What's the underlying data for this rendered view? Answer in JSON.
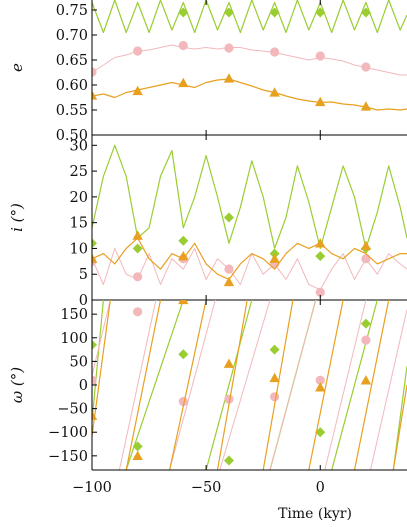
{
  "colors": {
    "green": "#9acd32",
    "pink": "#f2b8bc",
    "orange": "#e8a020"
  },
  "x_axis": {
    "label": "Time (kyr)",
    "range": [
      -100,
      38
    ],
    "ticks": [
      -100,
      -50,
      0
    ],
    "tick_labels": [
      "−100",
      "−50",
      "0"
    ]
  },
  "chart_data": [
    {
      "type": "line",
      "panel": "e",
      "ylabel": "e",
      "ylim": [
        0.5,
        0.77
      ],
      "yticks": [
        0.5,
        0.55,
        0.6,
        0.65,
        0.7,
        0.75
      ],
      "ytick_labels": [
        "0.50",
        "0.55",
        "0.60",
        "0.65",
        "0.70",
        "0.75"
      ],
      "series": [
        {
          "color": "green",
          "marker": "diamond",
          "x": [
            -100,
            -95,
            -90,
            -85,
            -80,
            -75,
            -70,
            -65,
            -60,
            -55,
            -50,
            -45,
            -40,
            -35,
            -30,
            -25,
            -20,
            -15,
            -10,
            -5,
            0,
            5,
            10,
            15,
            20,
            25,
            30,
            35,
            38
          ],
          "y": [
            0.765,
            0.705,
            0.77,
            0.705,
            0.765,
            0.705,
            0.77,
            0.71,
            0.765,
            0.705,
            0.77,
            0.71,
            0.765,
            0.705,
            0.77,
            0.71,
            0.765,
            0.705,
            0.77,
            0.71,
            0.765,
            0.705,
            0.77,
            0.71,
            0.765,
            0.705,
            0.77,
            0.71,
            0.74
          ],
          "markers_x": [
            -60,
            -40,
            -20,
            0,
            20
          ],
          "markers_y": [
            0.745,
            0.745,
            0.745,
            0.745,
            0.745
          ]
        },
        {
          "color": "pink",
          "marker": "circle",
          "x": [
            -100,
            -95,
            -90,
            -85,
            -80,
            -75,
            -70,
            -65,
            -60,
            -55,
            -50,
            -45,
            -40,
            -35,
            -30,
            -25,
            -20,
            -15,
            -10,
            -5,
            0,
            5,
            10,
            15,
            20,
            25,
            30,
            35,
            38
          ],
          "y": [
            0.625,
            0.64,
            0.655,
            0.66,
            0.668,
            0.67,
            0.675,
            0.68,
            0.675,
            0.672,
            0.675,
            0.672,
            0.675,
            0.675,
            0.67,
            0.668,
            0.665,
            0.66,
            0.655,
            0.65,
            0.655,
            0.652,
            0.648,
            0.64,
            0.635,
            0.63,
            0.625,
            0.62,
            0.62
          ],
          "markers_x": [
            -100,
            -80,
            -60,
            -40,
            -20,
            0,
            20
          ],
          "markers_y": [
            0.626,
            0.668,
            0.679,
            0.674,
            0.666,
            0.658,
            0.636
          ]
        },
        {
          "color": "orange",
          "marker": "triangle",
          "x": [
            -100,
            -95,
            -90,
            -85,
            -80,
            -75,
            -70,
            -65,
            -60,
            -55,
            -50,
            -45,
            -40,
            -35,
            -30,
            -25,
            -20,
            -15,
            -10,
            -5,
            0,
            5,
            10,
            15,
            20,
            25,
            30,
            35,
            38
          ],
          "y": [
            0.578,
            0.582,
            0.575,
            0.585,
            0.59,
            0.595,
            0.6,
            0.605,
            0.6,
            0.595,
            0.605,
            0.61,
            0.612,
            0.605,
            0.598,
            0.59,
            0.585,
            0.578,
            0.572,
            0.568,
            0.565,
            0.566,
            0.562,
            0.56,
            0.556,
            0.55,
            0.552,
            0.55,
            0.552
          ],
          "markers_x": [
            -100,
            -80,
            -60,
            -40,
            -20,
            0,
            20
          ],
          "markers_y": [
            0.579,
            0.588,
            0.604,
            0.613,
            0.585,
            0.566,
            0.557
          ]
        }
      ]
    },
    {
      "type": "line",
      "panel": "i",
      "ylabel": "i (°)",
      "ylim": [
        0,
        32
      ],
      "yticks": [
        0,
        5,
        10,
        15,
        20,
        25,
        30
      ],
      "ytick_labels": [
        "0",
        "5",
        "10",
        "15",
        "20",
        "25",
        "30"
      ],
      "series": [
        {
          "color": "green",
          "marker": "diamond",
          "x": [
            -100,
            -95,
            -90,
            -85,
            -80,
            -75,
            -70,
            -65,
            -60,
            -55,
            -50,
            -45,
            -40,
            -35,
            -30,
            -25,
            -20,
            -15,
            -10,
            -5,
            0,
            5,
            10,
            15,
            20,
            25,
            30,
            35,
            38
          ],
          "y": [
            14,
            24,
            30,
            24,
            12,
            14,
            24,
            29,
            14,
            20,
            28,
            20,
            11,
            18,
            27,
            20,
            10,
            16,
            26,
            19,
            10,
            18,
            26,
            20,
            10,
            17,
            26,
            18,
            12
          ],
          "markers_x": [
            -100,
            -80,
            -60,
            -40,
            -20,
            0,
            20
          ],
          "markers_y": [
            11,
            10,
            11.5,
            16,
            9,
            8.5,
            10
          ]
        },
        {
          "color": "pink",
          "marker": "circle",
          "x": [
            -100,
            -95,
            -90,
            -85,
            -80,
            -75,
            -70,
            -65,
            -60,
            -55,
            -50,
            -45,
            -40,
            -35,
            -30,
            -25,
            -20,
            -15,
            -10,
            -5,
            0,
            5,
            10,
            15,
            20,
            25,
            30,
            35,
            38
          ],
          "y": [
            8,
            3,
            10,
            5,
            4,
            9,
            3,
            8,
            6,
            10,
            4,
            8,
            6,
            3,
            9,
            5,
            7,
            4,
            8,
            3,
            2,
            6,
            9,
            4,
            8,
            5,
            9,
            7,
            6
          ],
          "markers_x": [
            -100,
            -80,
            -60,
            -40,
            -20,
            0,
            20
          ],
          "markers_y": [
            7.5,
            4.5,
            8,
            6,
            7,
            1.5,
            8
          ]
        },
        {
          "color": "orange",
          "marker": "triangle",
          "x": [
            -100,
            -95,
            -90,
            -85,
            -80,
            -75,
            -70,
            -65,
            -60,
            -55,
            -50,
            -45,
            -40,
            -35,
            -30,
            -25,
            -20,
            -15,
            -10,
            -5,
            0,
            5,
            10,
            15,
            20,
            25,
            30,
            35,
            38
          ],
          "y": [
            8,
            9,
            7,
            10,
            12,
            8,
            6,
            9,
            8,
            11,
            7,
            5,
            4,
            7,
            9,
            8,
            6,
            9,
            11,
            10,
            11,
            9,
            8,
            10,
            9,
            7,
            8,
            9,
            9
          ],
          "markers_x": [
            -100,
            -80,
            -60,
            -40,
            -20,
            0,
            20
          ],
          "markers_y": [
            8,
            12.5,
            8.5,
            3.5,
            8,
            11,
            10.5
          ]
        }
      ]
    },
    {
      "type": "line",
      "panel": "omega",
      "ylabel": "ω (°)",
      "ylim": [
        -180,
        180
      ],
      "yticks": [
        -150,
        -100,
        -50,
        0,
        50,
        100,
        150
      ],
      "ytick_labels": [
        "−150",
        "−100",
        "−50",
        "0",
        "50",
        "100",
        "150"
      ],
      "series": [
        {
          "color": "green",
          "marker": "diamond",
          "segments": [
            {
              "x": [
                -102,
                -95
              ],
              "y": [
                -180,
                180
              ]
            },
            {
              "x": [
                -85,
                -60
              ],
              "y": [
                -180,
                180
              ]
            },
            {
              "x": [
                -50,
                -30
              ],
              "y": [
                -180,
                180
              ]
            },
            {
              "x": [
                -22,
                -2
              ],
              "y": [
                -180,
                180
              ]
            },
            {
              "x": [
                5,
                25
              ],
              "y": [
                -180,
                180
              ]
            },
            {
              "x": [
                32,
                38
              ],
              "y": [
                -180,
                40
              ]
            }
          ],
          "markers_x": [
            -100,
            -80,
            -60,
            -40,
            -20,
            0,
            20
          ],
          "markers_y": [
            85,
            -130,
            65,
            -160,
            75,
            -100,
            130
          ]
        },
        {
          "color": "pink",
          "marker": "circle",
          "segments": [
            {
              "x": [
                -110,
                -92
              ],
              "y": [
                -180,
                180
              ]
            },
            {
              "x": [
                -88,
                -72
              ],
              "y": [
                -180,
                180
              ]
            },
            {
              "x": [
                -66,
                -46
              ],
              "y": [
                -180,
                180
              ]
            },
            {
              "x": [
                -44,
                -22
              ],
              "y": [
                -180,
                180
              ]
            },
            {
              "x": [
                -22,
                -2
              ],
              "y": [
                -180,
                180
              ]
            },
            {
              "x": [
                2,
                20
              ],
              "y": [
                -180,
                180
              ]
            },
            {
              "x": [
                22,
                38
              ],
              "y": [
                -180,
                160
              ]
            }
          ],
          "markers_x": [
            -100,
            -80,
            -60,
            -40,
            -20,
            0,
            20
          ],
          "markers_y": [
            10,
            155,
            -35,
            -30,
            -25,
            10,
            95
          ]
        },
        {
          "color": "orange",
          "marker": "triangle",
          "segments": [
            {
              "x": [
                -102,
                -92
              ],
              "y": [
                -180,
                180
              ]
            },
            {
              "x": [
                -85,
                -70
              ],
              "y": [
                -180,
                180
              ]
            },
            {
              "x": [
                -66,
                -50
              ],
              "y": [
                -180,
                180
              ]
            },
            {
              "x": [
                -45,
                -32
              ],
              "y": [
                -180,
                180
              ]
            },
            {
              "x": [
                -25,
                -12
              ],
              "y": [
                -180,
                180
              ]
            },
            {
              "x": [
                -5,
                10
              ],
              "y": [
                -180,
                180
              ]
            },
            {
              "x": [
                15,
                30
              ],
              "y": [
                -180,
                180
              ]
            },
            {
              "x": [
                32,
                38
              ],
              "y": [
                -180,
                0
              ]
            }
          ],
          "markers_x": [
            -100,
            -80,
            -60,
            -40,
            -20,
            0,
            20
          ],
          "markers_y": [
            -65,
            -150,
            180,
            45,
            15,
            -5,
            10
          ]
        }
      ]
    }
  ]
}
